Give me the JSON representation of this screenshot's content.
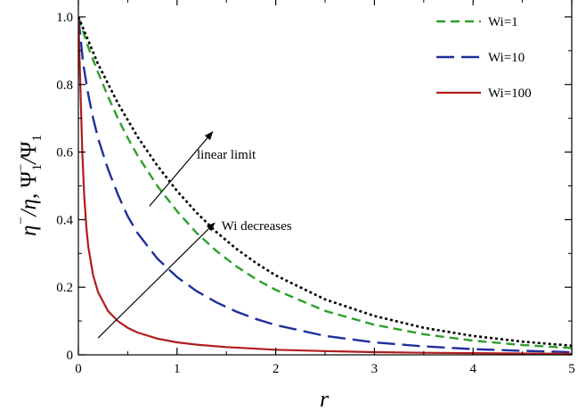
{
  "chart_data": {
    "type": "line",
    "xlabel": "r",
    "ylabel": {
      "base1": "η",
      "sup1": "−",
      "slash1": "/",
      "base2": "η",
      "sep": ", ",
      "base3": "Ψ",
      "sub3": "1",
      "sup3": "−",
      "slash2": "/",
      "base4": "Ψ",
      "sub4": "1"
    },
    "xlim": [
      0,
      5
    ],
    "ylim": [
      0,
      1.05
    ],
    "x_ticks": [
      0,
      1,
      2,
      3,
      4,
      5
    ],
    "x_tick_labels": [
      "0",
      "1",
      "2",
      "3",
      "4",
      "5"
    ],
    "y_ticks": [
      0,
      0.2,
      0.4,
      0.6,
      0.8,
      1.0
    ],
    "y_tick_labels": [
      "0",
      "0.2",
      "0.4",
      "0.6",
      "0.8",
      "1.0"
    ],
    "grid": false,
    "legend_position": "top-right",
    "series": [
      {
        "name": "Wi=1",
        "color": "#2ca02c",
        "dash": "dashed",
        "x": [
          0,
          0.1,
          0.2,
          0.3,
          0.4,
          0.5,
          0.6,
          0.8,
          1.0,
          1.2,
          1.4,
          1.6,
          1.8,
          2.0,
          2.5,
          3.0,
          3.5,
          4.0,
          4.5,
          5.0
        ],
        "y": [
          1.0,
          0.91,
          0.835,
          0.765,
          0.7,
          0.642,
          0.59,
          0.5,
          0.425,
          0.36,
          0.307,
          0.262,
          0.224,
          0.192,
          0.13,
          0.089,
          0.061,
          0.042,
          0.029,
          0.02
        ]
      },
      {
        "name": "Wi=10",
        "color": "#1f2f9e",
        "dash": "longdash",
        "x": [
          0,
          0.05,
          0.1,
          0.15,
          0.2,
          0.3,
          0.4,
          0.5,
          0.6,
          0.8,
          1.0,
          1.2,
          1.4,
          1.6,
          1.8,
          2.0,
          2.5,
          3.0,
          3.5,
          4.0,
          4.5,
          5.0
        ],
        "y": [
          1.0,
          0.86,
          0.77,
          0.7,
          0.64,
          0.55,
          0.475,
          0.41,
          0.36,
          0.285,
          0.23,
          0.188,
          0.155,
          0.128,
          0.106,
          0.088,
          0.056,
          0.037,
          0.025,
          0.017,
          0.012,
          0.008
        ]
      },
      {
        "name": "Wi=100",
        "color": "#b01c1c",
        "dash": "solid",
        "x": [
          0,
          0.01,
          0.02,
          0.04,
          0.06,
          0.08,
          0.1,
          0.15,
          0.2,
          0.3,
          0.4,
          0.5,
          0.6,
          0.8,
          1.0,
          1.2,
          1.5,
          2.0,
          2.5,
          3.0,
          3.5,
          4.0,
          5.0
        ],
        "y": [
          1.0,
          0.9,
          0.8,
          0.6,
          0.47,
          0.38,
          0.32,
          0.235,
          0.185,
          0.13,
          0.1,
          0.08,
          0.066,
          0.048,
          0.037,
          0.03,
          0.023,
          0.015,
          0.011,
          0.008,
          0.006,
          0.005,
          0.003
        ]
      },
      {
        "name": "",
        "color": "#000000",
        "dash": "dotted",
        "x": [
          0,
          0.2,
          0.4,
          0.6,
          0.8,
          1.0,
          1.2,
          1.4,
          1.6,
          1.8,
          2.0,
          2.5,
          3.0,
          3.5,
          4.0,
          4.5,
          5.0
        ],
        "y": [
          1.0,
          0.86,
          0.745,
          0.645,
          0.56,
          0.485,
          0.42,
          0.363,
          0.314,
          0.272,
          0.235,
          0.164,
          0.115,
          0.08,
          0.056,
          0.039,
          0.027
        ]
      }
    ],
    "annotations": [
      {
        "text": "linear limit",
        "arrow_from": [
          0.72,
          0.44
        ],
        "arrow_to": [
          1.36,
          0.66
        ],
        "label_at": [
          1.2,
          0.58
        ]
      },
      {
        "text": "Wi decreases",
        "arrow_from": [
          0.2,
          0.05
        ],
        "arrow_to": [
          1.38,
          0.39
        ],
        "label_at": [
          1.45,
          0.37
        ]
      }
    ]
  }
}
